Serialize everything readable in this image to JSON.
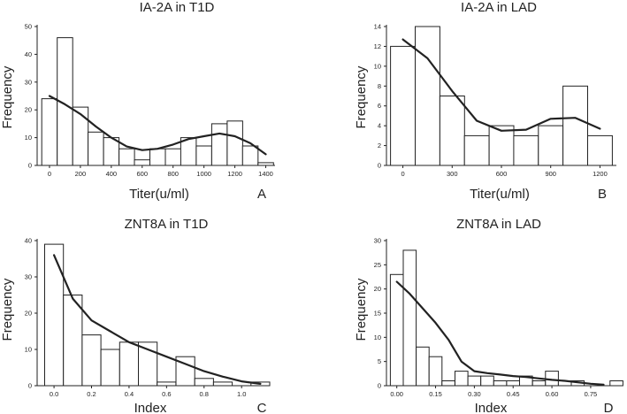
{
  "chart_data": [
    {
      "type": "bar",
      "title": "IA-2A in T1D",
      "xlabel": "Titer(u/ml)",
      "ylabel": "Frequency",
      "panel": "A",
      "bin_width": 100,
      "bin_start": -50,
      "values": [
        24,
        46,
        21,
        12,
        10,
        6,
        2,
        6,
        6,
        10,
        7,
        15,
        16,
        7,
        1
      ],
      "xlim": [
        -80,
        1460
      ],
      "ylim": [
        0,
        50
      ],
      "xticks": [
        0,
        200,
        400,
        600,
        800,
        1000,
        1200,
        1400
      ],
      "yticks": [
        0,
        10,
        20,
        30,
        40,
        50
      ],
      "trend": {
        "x": [
          0,
          100,
          200,
          300,
          400,
          500,
          600,
          700,
          800,
          900,
          1000,
          1100,
          1200,
          1300,
          1400
        ],
        "y": [
          25,
          22,
          18.5,
          14,
          10,
          6.8,
          5.5,
          6,
          7.5,
          9.5,
          10.5,
          11.5,
          10.5,
          8,
          4
        ]
      }
    },
    {
      "type": "bar",
      "title": "IA-2A in LAD",
      "xlabel": "Titer(u/ml)",
      "ylabel": "Frequency",
      "panel": "B",
      "bin_width": 150,
      "bin_start": -75,
      "values": [
        12,
        14,
        7,
        3,
        4,
        3,
        4,
        8,
        3
      ],
      "xlim": [
        -100,
        1300
      ],
      "ylim": [
        0,
        14
      ],
      "xticks": [
        0,
        300,
        600,
        900,
        1200
      ],
      "yticks": [
        0,
        2,
        4,
        6,
        8,
        10,
        12,
        14
      ],
      "trend": {
        "x": [
          0,
          150,
          300,
          450,
          600,
          750,
          900,
          1050,
          1200
        ],
        "y": [
          12.7,
          10.8,
          7.5,
          4.5,
          3.5,
          3.6,
          4.7,
          4.8,
          3.7
        ]
      }
    },
    {
      "type": "bar",
      "title": "ZNT8A in T1D",
      "xlabel": "Index",
      "ylabel": "Frequency",
      "panel": "C",
      "bin_width": 0.1,
      "bin_start": -0.05,
      "values": [
        39,
        25,
        14,
        10,
        12,
        12,
        1,
        8,
        2,
        1,
        0,
        1
      ],
      "xlim": [
        -0.09,
        1.15
      ],
      "ylim": [
        0,
        40
      ],
      "xticks": [
        0.0,
        0.2,
        0.4,
        0.6,
        0.8,
        1.0
      ],
      "yticks": [
        0,
        10,
        20,
        30,
        40
      ],
      "trend": {
        "x": [
          0.0,
          0.1,
          0.2,
          0.3,
          0.4,
          0.5,
          0.6,
          0.7,
          0.8,
          0.9,
          1.0,
          1.1
        ],
        "y": [
          36,
          24,
          18,
          15,
          12,
          10,
          8,
          6,
          4,
          2.5,
          1.2,
          0.5
        ]
      }
    },
    {
      "type": "bar",
      "title": "ZNT8A in LAD",
      "xlabel": "Index",
      "ylabel": "Frequency",
      "panel": "D",
      "bin_width": 0.05,
      "bin_start": -0.025,
      "values": [
        23,
        28,
        8,
        6,
        1,
        3,
        2,
        2,
        1,
        1,
        2,
        1,
        3,
        1,
        1,
        0,
        0,
        1
      ],
      "xlim": [
        -0.04,
        0.87
      ],
      "ylim": [
        0,
        30
      ],
      "xticks": [
        0.0,
        0.15,
        0.3,
        0.45,
        0.6,
        0.75
      ],
      "yticks": [
        0,
        5,
        10,
        15,
        20,
        25,
        30
      ],
      "trend": {
        "x": [
          0.0,
          0.05,
          0.1,
          0.15,
          0.2,
          0.25,
          0.3,
          0.35,
          0.4,
          0.45,
          0.5,
          0.55,
          0.6,
          0.65,
          0.7,
          0.75,
          0.8
        ],
        "y": [
          21.5,
          19,
          16,
          13,
          9.5,
          5,
          3,
          2.6,
          2.3,
          2,
          1.8,
          1.5,
          1.2,
          1,
          0.7,
          0.4,
          0.2
        ]
      }
    }
  ],
  "tick_labels": [
    [
      "0",
      "200",
      "400",
      "600",
      "800",
      "1000",
      "1200",
      "1400"
    ],
    [
      "0",
      "300",
      "600",
      "900",
      "1200"
    ],
    [
      "0.0",
      "0.2",
      "0.4",
      "0.6",
      "0.8",
      "1.0"
    ],
    [
      "0.00",
      "0.15",
      "0.30",
      "0.45",
      "0.60",
      "0.75"
    ]
  ],
  "ytick_labels": [
    [
      "0",
      "10",
      "20",
      "30",
      "40",
      "50"
    ],
    [
      "0",
      "2",
      "4",
      "6",
      "8",
      "10",
      "12",
      "14"
    ],
    [
      "0",
      "10",
      "20",
      "30",
      "40"
    ],
    [
      "0",
      "5",
      "10",
      "15",
      "20",
      "25",
      "30"
    ]
  ]
}
